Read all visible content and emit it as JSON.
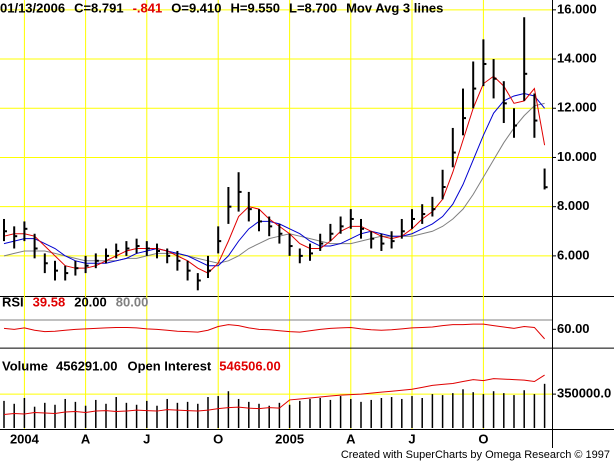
{
  "chart_data": [
    {
      "type": "ohlc",
      "header": [
        {
          "text": "01/13/2006",
          "color": "#000000"
        },
        {
          "text": "C=8.791",
          "color": "#000000"
        },
        {
          "text": "-.841",
          "color": "#e00000"
        },
        {
          "text": "O=9.410",
          "color": "#000000"
        },
        {
          "text": "H=9.550",
          "color": "#000000"
        },
        {
          "text": "L=8.700",
          "color": "#000000"
        },
        {
          "text": "Mov Avg 3 lines",
          "color": "#000000"
        }
      ],
      "categories": [
        null,
        null,
        "2004",
        null,
        null,
        null,
        null,
        null,
        "A",
        null,
        null,
        null,
        null,
        null,
        "J",
        null,
        null,
        null,
        null,
        null,
        null,
        "O",
        null,
        null,
        null,
        null,
        null,
        null,
        "2005",
        null,
        null,
        null,
        null,
        null,
        "A",
        null,
        null,
        null,
        null,
        null,
        "J",
        null,
        null,
        null,
        null,
        null,
        null,
        "O",
        null,
        null,
        null,
        null,
        null,
        null
      ],
      "high": [
        7.5,
        7.2,
        7.4,
        6.9,
        6.1,
        5.8,
        5.6,
        5.8,
        6.0,
        6.1,
        6.3,
        6.5,
        6.6,
        6.7,
        6.6,
        6.5,
        6.3,
        6.2,
        5.8,
        5.3,
        6.0,
        7.2,
        8.8,
        9.4,
        8.6,
        7.9,
        7.6,
        7.3,
        6.9,
        6.3,
        6.5,
        6.9,
        7.3,
        7.6,
        7.9,
        7.5,
        7.0,
        6.9,
        7.0,
        7.5,
        7.9,
        8.1,
        8.4,
        9.5,
        11.2,
        12.8,
        13.9,
        14.8,
        14.0,
        13.1,
        12.0,
        15.7,
        12.6,
        9.55
      ],
      "low": [
        6.6,
        6.3,
        6.6,
        5.9,
        5.3,
        5.0,
        5.0,
        5.2,
        5.3,
        5.5,
        5.7,
        5.9,
        6.0,
        6.1,
        6.0,
        5.9,
        5.7,
        5.4,
        5.0,
        4.6,
        5.1,
        6.1,
        7.3,
        7.8,
        7.4,
        7.0,
        6.8,
        6.5,
        6.0,
        5.7,
        5.8,
        6.2,
        6.6,
        6.9,
        7.1,
        6.7,
        6.3,
        6.2,
        6.3,
        6.7,
        7.1,
        7.3,
        7.6,
        8.3,
        9.6,
        10.9,
        12.0,
        12.9,
        12.4,
        11.4,
        10.8,
        12.3,
        10.8,
        8.7
      ],
      "close": [
        7.0,
        6.8,
        7.1,
        6.3,
        5.7,
        5.4,
        5.3,
        5.5,
        5.6,
        5.8,
        6.0,
        6.2,
        6.3,
        6.4,
        6.3,
        6.2,
        6.0,
        5.8,
        5.4,
        5.0,
        5.4,
        6.6,
        8.0,
        8.6,
        7.9,
        7.4,
        7.2,
        6.9,
        6.4,
        6.0,
        6.1,
        6.5,
        6.9,
        7.2,
        7.5,
        7.1,
        6.7,
        6.5,
        6.6,
        7.0,
        7.5,
        7.7,
        7.9,
        8.8,
        10.2,
        11.6,
        12.8,
        13.8,
        13.2,
        12.2,
        11.3,
        13.4,
        11.5,
        8.791
      ],
      "bar_color": "#000000",
      "series": [
        {
          "color": "#808080",
          "values": [
            6.0,
            6.1,
            6.2,
            6.2,
            6.2,
            6.1,
            6.0,
            5.9,
            5.8,
            5.8,
            5.8,
            5.8,
            5.9,
            5.9,
            6.0,
            6.1,
            6.1,
            6.1,
            6.0,
            5.9,
            5.8,
            5.7,
            5.8,
            6.0,
            6.3,
            6.5,
            6.7,
            6.8,
            6.9,
            6.8,
            6.7,
            6.6,
            6.5,
            6.5,
            6.5,
            6.6,
            6.7,
            6.8,
            6.8,
            6.8,
            6.8,
            6.9,
            7.0,
            7.2,
            7.5,
            7.9,
            8.5,
            9.2,
            9.9,
            10.6,
            11.2,
            11.7,
            12.1,
            12.2
          ]
        },
        {
          "color": "#0000d0",
          "values": [
            6.5,
            6.6,
            6.7,
            6.7,
            6.5,
            6.3,
            6.0,
            5.8,
            5.7,
            5.7,
            5.7,
            5.8,
            5.9,
            6.1,
            6.2,
            6.3,
            6.2,
            6.1,
            6.0,
            5.8,
            5.6,
            5.6,
            6.0,
            6.6,
            7.1,
            7.4,
            7.4,
            7.3,
            7.1,
            6.9,
            6.6,
            6.4,
            6.4,
            6.5,
            6.7,
            6.9,
            7.0,
            6.9,
            6.8,
            6.8,
            6.9,
            7.1,
            7.3,
            7.6,
            8.1,
            8.9,
            9.9,
            10.9,
            11.8,
            12.3,
            12.5,
            12.6,
            12.5,
            12.0
          ]
        },
        {
          "color": "#e00000",
          "values": [
            6.8,
            6.9,
            6.9,
            6.8,
            6.4,
            6.0,
            5.6,
            5.5,
            5.5,
            5.6,
            5.8,
            6.0,
            6.2,
            6.3,
            6.3,
            6.3,
            6.2,
            6.0,
            5.8,
            5.5,
            5.3,
            5.7,
            6.6,
            7.6,
            8.0,
            7.9,
            7.5,
            7.2,
            6.9,
            6.5,
            6.3,
            6.3,
            6.6,
            7.0,
            7.2,
            7.2,
            7.0,
            6.8,
            6.7,
            6.8,
            7.1,
            7.5,
            7.8,
            8.3,
            9.4,
            10.7,
            12.0,
            13.0,
            13.3,
            12.9,
            12.2,
            12.3,
            12.8,
            10.5
          ]
        }
      ],
      "ylim": [
        4.41,
        16.4
      ],
      "yticks": [
        {
          "value": 6,
          "label": "6.000"
        },
        {
          "value": 8,
          "label": "8.000"
        },
        {
          "value": 10,
          "label": "10.000"
        },
        {
          "value": 12,
          "label": "12.000"
        },
        {
          "value": 14,
          "label": "14.000"
        },
        {
          "value": 16,
          "label": "16.000"
        }
      ],
      "grid": true,
      "grid_color": "#ffff00",
      "footer": "Created with SuperCharts by Omega Research © 1997"
    },
    {
      "type": "line",
      "title": "RSI",
      "current": 39.58,
      "current_color": "#e00000",
      "levels": [
        {
          "value": 20,
          "label": "20.00"
        },
        {
          "value": 80,
          "label": "80.00"
        }
      ],
      "level_colors": [
        "#000000",
        "#808080"
      ],
      "series": [
        {
          "color": "#e00000",
          "values": [
            62,
            60,
            63,
            58,
            55,
            56,
            58,
            60,
            61,
            62,
            63,
            64,
            64,
            63,
            61,
            60,
            58,
            56,
            55,
            54,
            58,
            66,
            70,
            68,
            63,
            60,
            59,
            57,
            55,
            54,
            57,
            60,
            62,
            63,
            64,
            61,
            59,
            58,
            59,
            61,
            63,
            64,
            65,
            68,
            70,
            70,
            71,
            71,
            68,
            65,
            62,
            66,
            64,
            39.58
          ]
        }
      ],
      "ylim": [
        18,
        129
      ],
      "yticks": [
        {
          "value": 60,
          "label": "60.00"
        }
      ]
    },
    {
      "type": "volume",
      "series": [
        {
          "name": "Volume",
          "color": "#000000",
          "current": {
            "value": 456291,
            "label": "456291.00"
          },
          "values": [
            280000,
            250000,
            310000,
            220000,
            260000,
            240000,
            300000,
            270000,
            230000,
            290000,
            250000,
            320000,
            260000,
            240000,
            280000,
            230000,
            300000,
            260000,
            270000,
            250000,
            320000,
            330000,
            380000,
            300000,
            270000,
            250000,
            230000,
            260000,
            240000,
            280000,
            300000,
            310000,
            290000,
            330000,
            300000,
            270000,
            290000,
            310000,
            320000,
            300000,
            330000,
            310000,
            350000,
            340000,
            360000,
            400000,
            370000,
            350000,
            380000,
            360000,
            340000,
            390000,
            350000,
            456291
          ]
        },
        {
          "name": "Open Interest",
          "color": "#e00000",
          "current": {
            "value": 546506,
            "label": "546506.00"
          },
          "values": [
            140000,
            150000,
            145000,
            160000,
            155000,
            150000,
            165000,
            170000,
            160000,
            175000,
            180000,
            170000,
            175000,
            185000,
            180000,
            175000,
            190000,
            185000,
            180000,
            175000,
            185000,
            200000,
            210000,
            215000,
            205000,
            200000,
            210000,
            205000,
            290000,
            300000,
            310000,
            320000,
            330000,
            340000,
            345000,
            350000,
            360000,
            370000,
            380000,
            390000,
            400000,
            420000,
            440000,
            450000,
            460000,
            480000,
            500000,
            490000,
            510000,
            505000,
            500000,
            495000,
            480000,
            546506
          ]
        }
      ],
      "ylim": [
        0,
        816000
      ],
      "yticks": [
        {
          "value": 350000,
          "label": "350000.0"
        }
      ]
    }
  ]
}
